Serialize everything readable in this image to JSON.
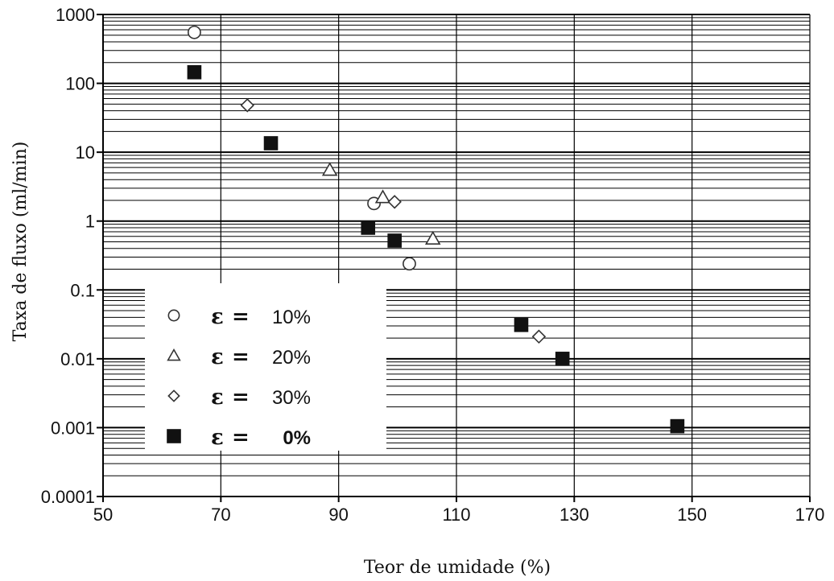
{
  "chart_data": {
    "type": "scatter",
    "title": "",
    "xlabel": "Teor de umidade (%)",
    "ylabel": "Taxa de fluxo (ml/min)",
    "xlim": [
      50,
      170
    ],
    "ylim": [
      0.0001,
      1000
    ],
    "yscale": "log",
    "grid": true,
    "x_ticks": [
      "50",
      "70",
      "90",
      "110",
      "130",
      "150",
      "170"
    ],
    "y_ticks": [
      "0.0001",
      "0.001",
      "0.01",
      "0.1",
      "1",
      "10",
      "100",
      "1000"
    ],
    "legend_position": "lower-left",
    "series": [
      {
        "name": "10%",
        "eps": "ε",
        "eq": "=",
        "marker": "circle",
        "points": [
          [
            65.5,
            550
          ],
          [
            96,
            1.8
          ],
          [
            102,
            0.24
          ]
        ]
      },
      {
        "name": "20%",
        "eps": "ε",
        "eq": "=",
        "marker": "triangle",
        "points": [
          [
            88.5,
            5.5
          ],
          [
            97.5,
            2.2
          ],
          [
            106,
            0.55
          ]
        ]
      },
      {
        "name": "30%",
        "eps": "ε",
        "eq": "=",
        "marker": "diamond",
        "points": [
          [
            74.5,
            48
          ],
          [
            99.5,
            1.9
          ],
          [
            124,
            0.021
          ]
        ]
      },
      {
        "name": "0%",
        "eps": "ε",
        "eq": "=",
        "marker": "square",
        "points": [
          [
            65.5,
            145
          ],
          [
            78.5,
            13.5
          ],
          [
            95,
            0.8
          ],
          [
            99.5,
            0.52
          ],
          [
            121,
            0.031
          ],
          [
            128,
            0.01
          ],
          [
            147.5,
            0.00105
          ]
        ]
      }
    ]
  }
}
